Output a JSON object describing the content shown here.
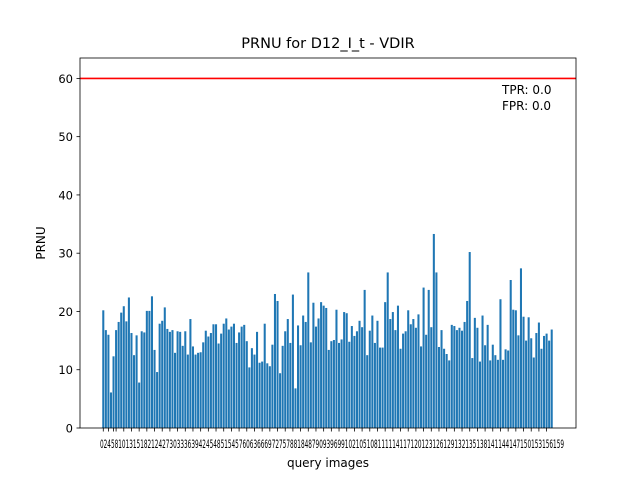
{
  "chart_data": {
    "type": "bar",
    "title": "PRNU for D12_I_t - VDIR",
    "xlabel": "query images",
    "ylabel": "PRNU",
    "ylim": [
      0,
      63.5
    ],
    "yticks": [
      0,
      10,
      20,
      30,
      40,
      50,
      60
    ],
    "x_tick_labels_text": "0245810131518212427303336394245485154576063666972757881848790939699102105108111114117120123126129132135138141144147150153156159",
    "threshold": {
      "value": 60,
      "color": "#ff0000"
    },
    "bar_color": "#1f77b4",
    "annotations": [
      "TPR: 0.0",
      "FPR: 0.0"
    ],
    "grid": false,
    "values": [
      20.2,
      16.8,
      16.0,
      6.1,
      12.3,
      16.8,
      18.2,
      19.8,
      20.9,
      18.3,
      22.4,
      16.3,
      12.5,
      15.9,
      7.8,
      16.6,
      16.4,
      20.1,
      20.1,
      22.6,
      13.4,
      9.6,
      17.9,
      18.4,
      20.7,
      17.0,
      16.5,
      16.8,
      12.9,
      16.6,
      16.5,
      14.1,
      16.6,
      12.6,
      18.7,
      14.0,
      12.6,
      12.9,
      13.0,
      14.7,
      16.7,
      15.7,
      16.3,
      17.8,
      17.8,
      14.5,
      16.2,
      17.9,
      18.8,
      16.9,
      17.4,
      17.9,
      14.6,
      16.4,
      17.4,
      17.7,
      14.9,
      10.4,
      13.7,
      12.6,
      16.5,
      11.2,
      11.4,
      17.9,
      11.1,
      10.6,
      14.3,
      23.0,
      21.8,
      9.4,
      14.1,
      16.6,
      18.7,
      14.6,
      22.9,
      6.8,
      17.6,
      14.2,
      19.3,
      18.2,
      26.7,
      14.7,
      21.5,
      17.4,
      18.8,
      21.6,
      21.0,
      20.6,
      13.4,
      14.9,
      15.1,
      20.3,
      14.6,
      15.2,
      19.9,
      19.7,
      14.8,
      17.5,
      15.8,
      16.6,
      18.4,
      17.3,
      23.7,
      12.5,
      16.7,
      19.3,
      14.6,
      18.4,
      13.8,
      13.8,
      21.6,
      26.7,
      18.7,
      19.9,
      16.8,
      21.0,
      13.6,
      16.2,
      16.6,
      20.2,
      17.8,
      18.7,
      17.2,
      19.5,
      14.0,
      24.1,
      16.0,
      23.7,
      17.3,
      33.3,
      26.7,
      13.9,
      16.8,
      13.6,
      12.7,
      11.6,
      17.7,
      17.5,
      16.8,
      17.2,
      16.7,
      18.2,
      21.8,
      30.2,
      12.0,
      18.9,
      17.2,
      11.4,
      19.3,
      14.2,
      17.7,
      11.6,
      14.3,
      12.5,
      11.7,
      22.1,
      11.7,
      13.5,
      13.3,
      25.4,
      20.3,
      20.2,
      15.9,
      27.4,
      19.1,
      15.0,
      19.0,
      15.4,
      12.1,
      16.3,
      18.1,
      13.6,
      15.8,
      16.2,
      15.0,
      16.9
    ]
  }
}
